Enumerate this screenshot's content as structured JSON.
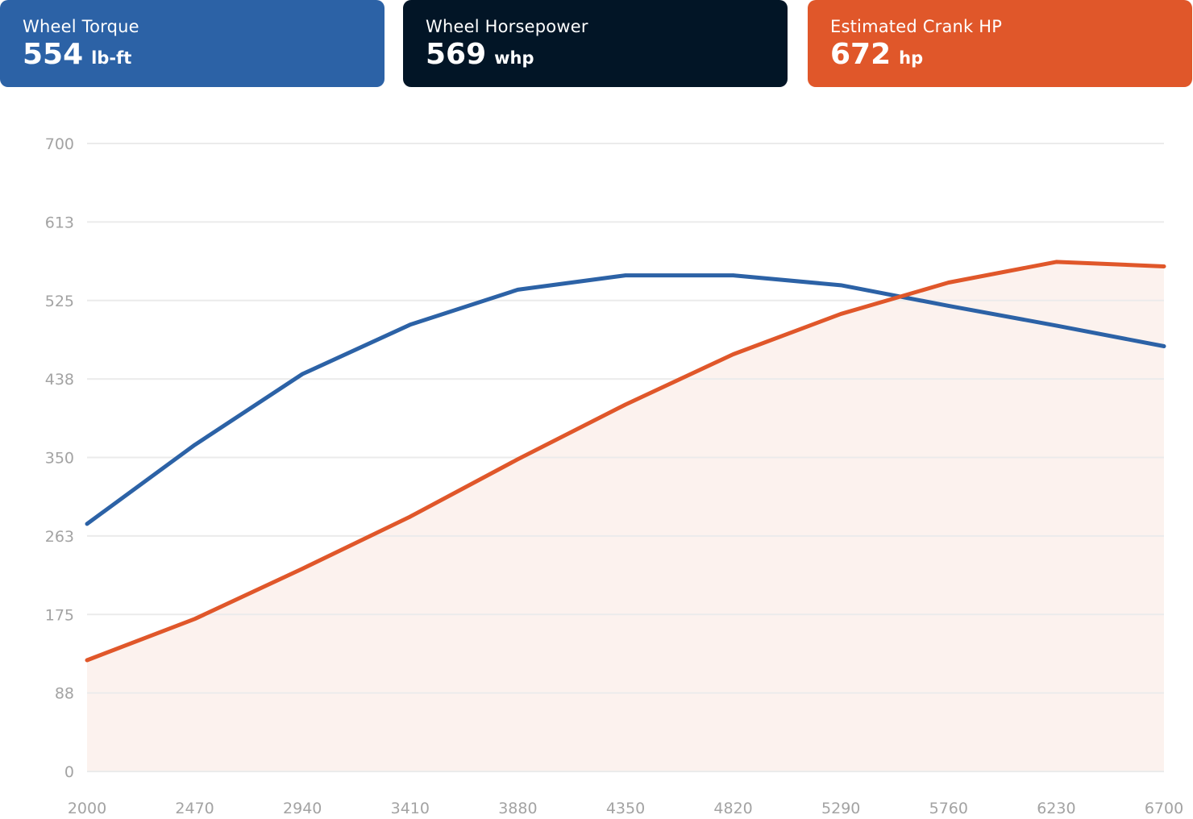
{
  "cards": [
    {
      "label": "Wheel Torque",
      "value": "554",
      "unit": "lb-ft",
      "color": "#2c62a6"
    },
    {
      "label": "Wheel Horsepower",
      "value": "569",
      "unit": "whp",
      "color": "#021526"
    },
    {
      "label": "Estimated Crank HP",
      "value": "672",
      "unit": "hp",
      "color": "#e0572a"
    }
  ],
  "chart_data": {
    "type": "line",
    "x": [
      2000,
      2470,
      2940,
      3410,
      3880,
      4350,
      4820,
      5290,
      5760,
      6230,
      6700
    ],
    "x_tick_labels": [
      "2000",
      "2470",
      "2940",
      "3410",
      "3880",
      "4350",
      "4820",
      "5290",
      "5760",
      "6230",
      "6700"
    ],
    "y_tick_labels": [
      "0",
      "88",
      "175",
      "263",
      "350",
      "438",
      "525",
      "613",
      "700"
    ],
    "ylim": [
      0,
      700
    ],
    "grid": true,
    "series": [
      {
        "color": "#2c62a6",
        "fill": false,
        "values": [
          276,
          364,
          443,
          498,
          537,
          553,
          553,
          542,
          519,
          497,
          474
        ]
      },
      {
        "color": "#e0572a",
        "fill": true,
        "fill_color": "#fcf2ee",
        "values": [
          124,
          170,
          226,
          284,
          348,
          409,
          465,
          510,
          545,
          568,
          563
        ]
      }
    ]
  }
}
